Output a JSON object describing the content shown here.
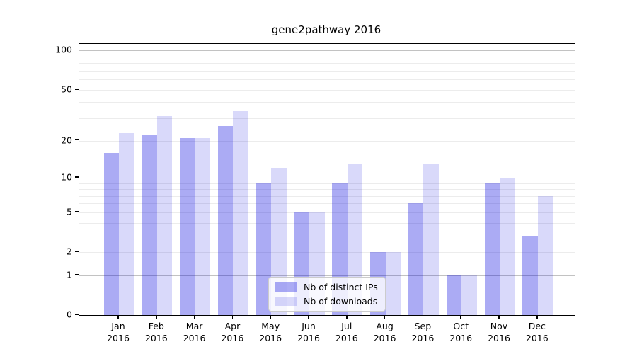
{
  "chart_data": {
    "type": "bar",
    "title": "gene2pathway 2016",
    "categories": [
      "Jan",
      "Feb",
      "Mar",
      "Apr",
      "May",
      "Jun",
      "Jul",
      "Aug",
      "Sep",
      "Oct",
      "Nov",
      "Dec"
    ],
    "year": "2016",
    "series": [
      {
        "name": "Nb of distinct IPs",
        "values": [
          16,
          22,
          21,
          26,
          9,
          5,
          9,
          2,
          6,
          1,
          9,
          3
        ],
        "color": "rgba(0,0,221,0.33)"
      },
      {
        "name": "Nb of downloads",
        "values": [
          23,
          31,
          21,
          34,
          12,
          5,
          13,
          2,
          13,
          1,
          10,
          7
        ],
        "color": "rgba(0,0,221,0.15)"
      }
    ],
    "scale": "log1p",
    "ylim": [
      0,
      113
    ],
    "y_ticks": [
      100,
      50,
      20,
      10,
      5,
      2,
      1,
      0
    ],
    "y_major_gridlines": [
      1,
      10,
      100
    ],
    "y_minor_gridlines": [
      2,
      3,
      4,
      5,
      6,
      7,
      8,
      9,
      20,
      30,
      40,
      50,
      60,
      70,
      80,
      90
    ],
    "grid": true,
    "legend_position": "lower center",
    "colors": {
      "axis": "#000000",
      "major_grid": "#c2c2c2",
      "minor_grid": "#ececec",
      "background": "#ffffff"
    }
  }
}
